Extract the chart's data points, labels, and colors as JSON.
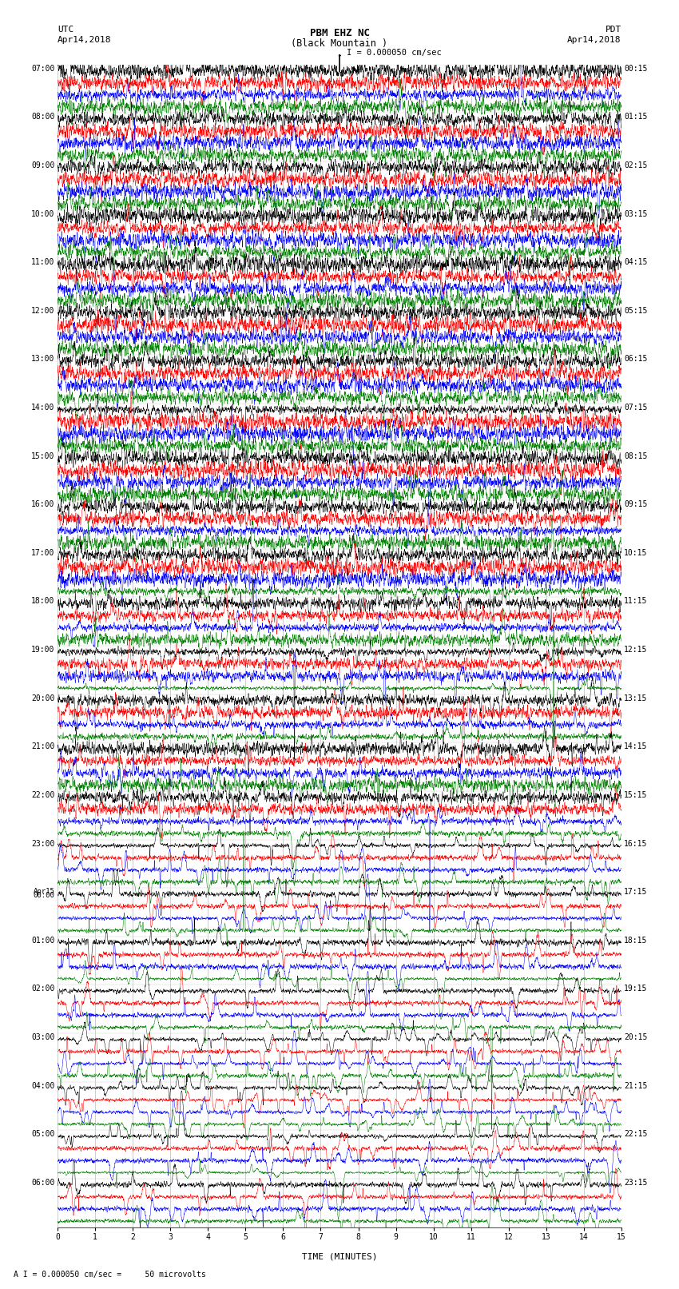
{
  "title_line1": "PBM EHZ NC",
  "title_line2": "(Black Mountain )",
  "scale_label": "I = 0.000050 cm/sec",
  "bottom_label": "A I = 0.000050 cm/sec =     50 microvolts",
  "xlabel": "TIME (MINUTES)",
  "left_label_utc": "UTC",
  "left_label_date": "Apr14,2018",
  "right_label_pdt": "PDT",
  "right_label_date": "Apr14,2018",
  "left_times": [
    "07:00",
    "08:00",
    "09:00",
    "10:00",
    "11:00",
    "12:00",
    "13:00",
    "14:00",
    "15:00",
    "16:00",
    "17:00",
    "18:00",
    "19:00",
    "20:00",
    "21:00",
    "22:00",
    "23:00",
    "Apr15\n00:00",
    "01:00",
    "02:00",
    "03:00",
    "04:00",
    "05:00",
    "06:00"
  ],
  "right_times": [
    "00:15",
    "01:15",
    "02:15",
    "03:15",
    "04:15",
    "05:15",
    "06:15",
    "07:15",
    "08:15",
    "09:15",
    "10:15",
    "11:15",
    "12:15",
    "13:15",
    "14:15",
    "15:15",
    "16:15",
    "17:15",
    "18:15",
    "19:15",
    "20:15",
    "21:15",
    "22:15",
    "23:15"
  ],
  "num_rows": 24,
  "traces_per_row": 4,
  "colors": [
    "black",
    "red",
    "blue",
    "green"
  ],
  "fig_width": 8.5,
  "fig_height": 16.13,
  "background_color": "white",
  "xmin": 0,
  "xmax": 15,
  "xticks": [
    0,
    1,
    2,
    3,
    4,
    5,
    6,
    7,
    8,
    9,
    10,
    11,
    12,
    13,
    14,
    15
  ],
  "seed": 12345
}
